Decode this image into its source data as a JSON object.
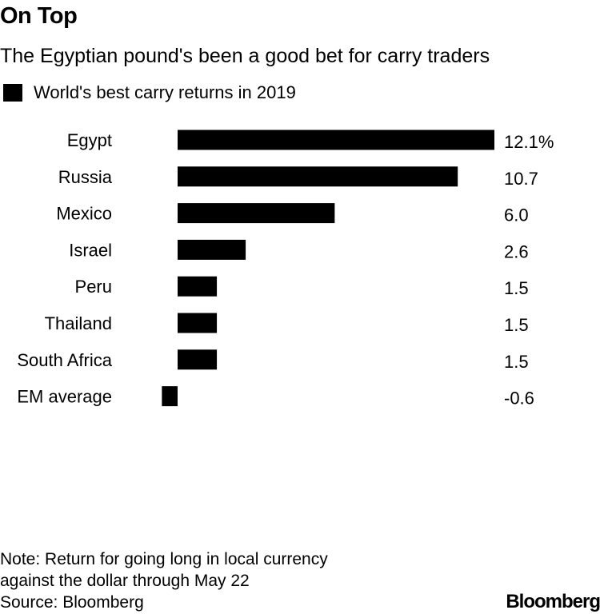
{
  "title": "On Top",
  "subtitle": "The Egyptian pound's been a good bet for carry traders",
  "legend": {
    "label": "World's best carry returns in 2019"
  },
  "footer": {
    "note_line1": "Note: Return for going long in local currency",
    "note_line2": "against the dollar through May 22",
    "source": "Source: Bloomberg",
    "brand": "Bloomberg"
  },
  "chart_data": {
    "type": "bar",
    "orientation": "horizontal",
    "title": "On Top",
    "subtitle": "The Egyptian pound's been a good bet for carry traders",
    "categories": [
      "Egypt",
      "Russia",
      "Mexico",
      "Israel",
      "Peru",
      "Thailand",
      "South Africa",
      "EM average"
    ],
    "series": [
      {
        "name": "World's best carry returns in 2019",
        "values": [
          12.1,
          10.7,
          6.0,
          2.6,
          1.5,
          1.5,
          1.5,
          -0.6
        ],
        "labels": [
          "12.1%",
          "10.7",
          "6.0",
          "2.6",
          "1.5",
          "1.5",
          "1.5",
          "-0.6"
        ],
        "color": "#000000"
      }
    ],
    "xlim": [
      -0.6,
      12.1
    ],
    "grid": false,
    "legend_position": "top-left"
  }
}
